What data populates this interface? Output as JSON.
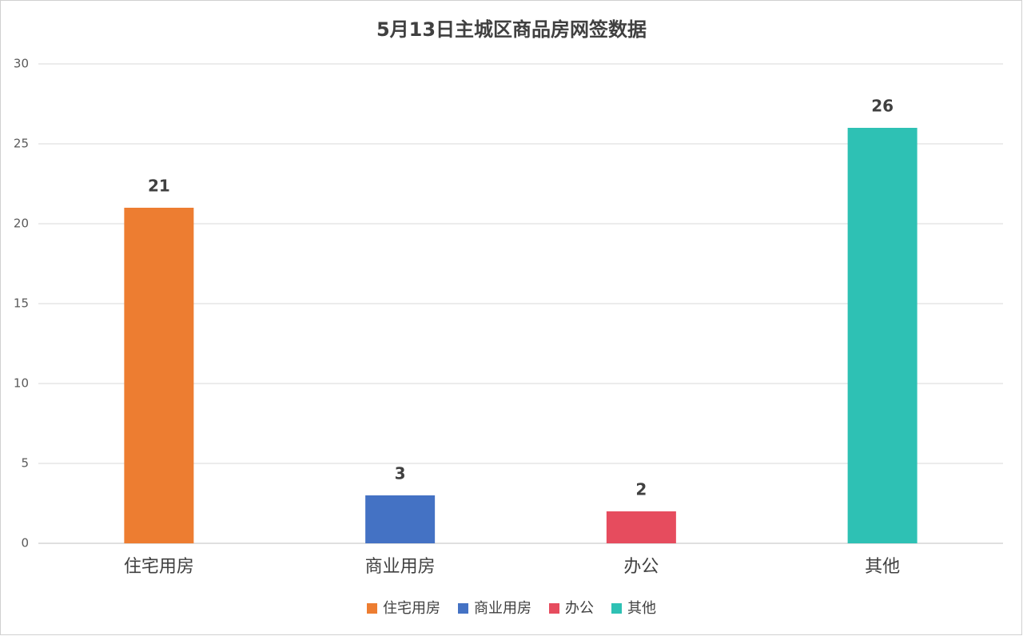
{
  "chart_data": {
    "type": "bar",
    "title": "5月13日主城区商品房网签数据",
    "categories": [
      "住宅用房",
      "商业用房",
      "办公",
      "其他"
    ],
    "values": [
      21,
      3,
      2,
      26
    ],
    "colors": [
      "#ed7d31",
      "#4472c4",
      "#e64c5e",
      "#2ec1b4"
    ],
    "ylim": [
      0,
      30
    ],
    "yticks": [
      0,
      5,
      10,
      15,
      20,
      25,
      30
    ],
    "grid": true,
    "legend": "bottom"
  }
}
